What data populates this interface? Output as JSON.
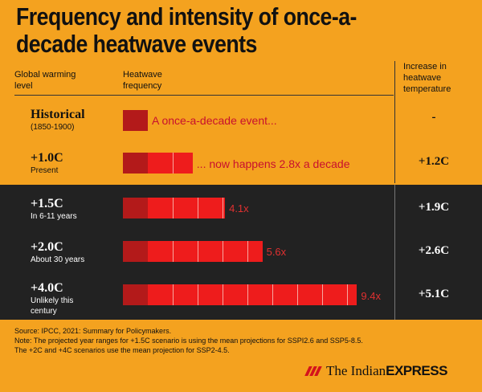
{
  "title": "Frequency and intensity of once-a-decade heatwave events",
  "headers": {
    "level": [
      "Global warming",
      "level"
    ],
    "frequency": [
      "Heatwave",
      "frequency"
    ],
    "increase": [
      "Increase in",
      "heatwave",
      "temperature"
    ]
  },
  "rows": [
    {
      "level": "Historical",
      "sub": [
        "(1850-1900)"
      ],
      "note": "A once-a-decade event...",
      "increase": "-"
    },
    {
      "level": "+1.0C",
      "sub": [
        "Present"
      ],
      "note": "... now happens 2.8x a decade",
      "increase": "+1.2C"
    },
    {
      "level": "+1.5C",
      "sub": [
        "In 6-11 years"
      ],
      "note": "4.1x",
      "increase": "+1.9C"
    },
    {
      "level": "+2.0C",
      "sub": [
        "About 30 years"
      ],
      "note": "5.6x",
      "increase": "+2.6C"
    },
    {
      "level": "+4.0C",
      "sub": [
        "Unlikely this",
        "century"
      ],
      "note": "9.4x",
      "increase": "+5.1C"
    }
  ],
  "footer": [
    "Source: IPCC, 2021: Summary for Policymakers.",
    "Note: The projected year ranges for +1.5C scenario is using the mean projections for SSPI2.6 and SSP5-8.5.",
    "The +2C and +4C scenarios use the mean projection for SSP2-4.5."
  ],
  "brand": {
    "prefix": "The Indian",
    "suffix": "EXPRESS"
  },
  "colors": {
    "background": "#f4a21f",
    "dark_band": "#222222",
    "base_bar": "#b31a1a",
    "extra_bar": "#ee1c1c"
  },
  "chart_data": {
    "type": "bar",
    "title": "Frequency and intensity of once-a-decade heatwave events",
    "categories": [
      "Historical",
      "+1.0C",
      "+1.5C",
      "+2.0C",
      "+4.0C"
    ],
    "series": [
      {
        "name": "Heatwave frequency",
        "values": [
          1,
          2.8,
          4.1,
          5.6,
          9.4
        ]
      }
    ],
    "increase_in_temperature": [
      "-",
      "+1.2C",
      "+1.9C",
      "+2.6C",
      "+5.1C"
    ]
  }
}
